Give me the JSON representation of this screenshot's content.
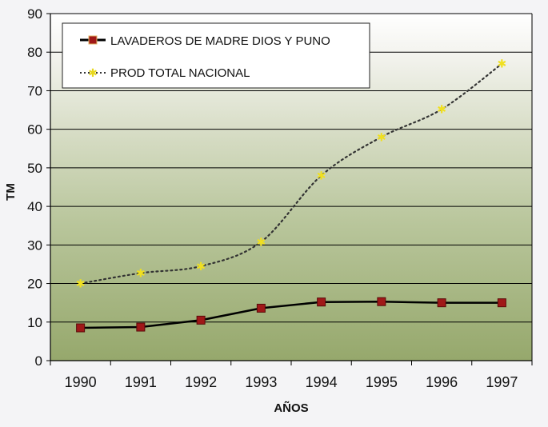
{
  "chart_data": {
    "type": "line",
    "xlabel": "AÑOS",
    "ylabel": "TM",
    "categories": [
      "1990",
      "1991",
      "1992",
      "1993",
      "1994",
      "1995",
      "1996",
      "1997"
    ],
    "ylim": [
      0,
      90
    ],
    "yticks": [
      0,
      10,
      20,
      30,
      40,
      50,
      60,
      70,
      80,
      90
    ],
    "grid": true,
    "legend_position": "top-left",
    "series": [
      {
        "name": "LAVADEROS DE MADRE DIOS Y PUNO",
        "values": [
          8.5,
          8.7,
          10.5,
          13.6,
          15.2,
          15.3,
          15.0,
          15.0
        ],
        "color": "#000000",
        "marker_color": "#a01818",
        "style": "solid",
        "marker": "square"
      },
      {
        "name": "PROD TOTAL NACIONAL",
        "values": [
          20.0,
          22.7,
          24.5,
          30.8,
          48.0,
          58.0,
          65.2,
          77.0
        ],
        "color": "#333333",
        "marker_color": "#f0e020",
        "style": "dotted",
        "marker": "asterisk"
      }
    ]
  }
}
